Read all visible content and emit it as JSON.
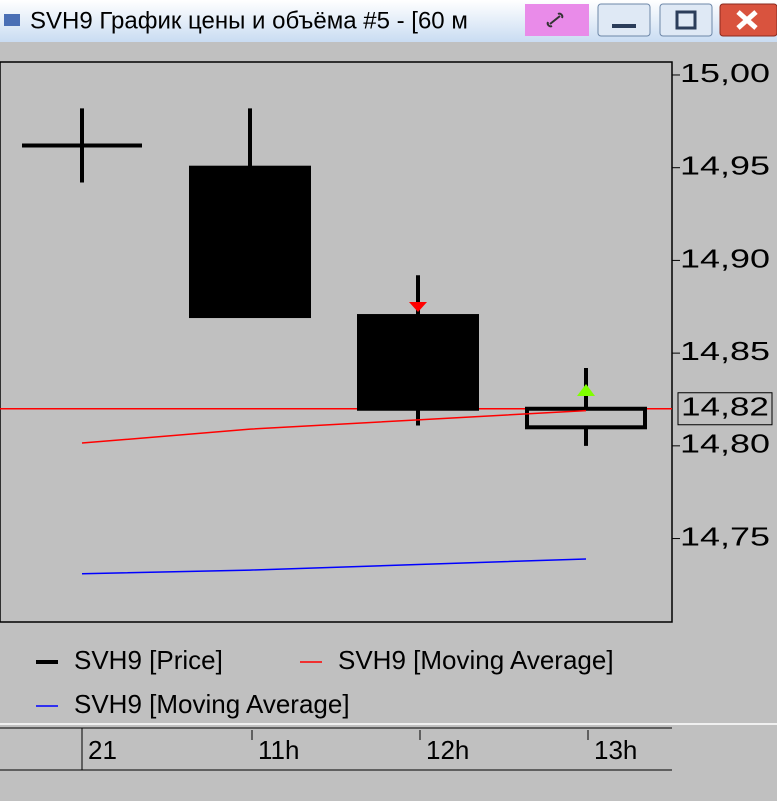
{
  "window": {
    "title": "SVH9 График цены и объёма #5 - [60 м"
  },
  "chart_data": {
    "type": "candlestick",
    "categories": [
      "21",
      "11h",
      "12h",
      "13h"
    ],
    "series": [
      {
        "name": "SVH9 [Price]",
        "color": "#000000",
        "open": [
          14.962,
          14.95,
          14.87,
          14.81
        ],
        "high": [
          14.982,
          14.982,
          14.892,
          14.842
        ],
        "low": [
          14.942,
          14.87,
          14.811,
          14.8
        ],
        "close": [
          14.962,
          14.87,
          14.82,
          14.82
        ]
      },
      {
        "name": "SVH9 [Moving Average]",
        "color": "#ff0000",
        "values": [
          14.8015,
          14.809,
          14.814,
          14.819
        ]
      },
      {
        "name": "SVH9 [Moving Average]",
        "color": "#0000ff",
        "values": [
          14.731,
          14.733,
          14.736,
          14.739
        ]
      }
    ],
    "ylim": [
      14.705,
      15.007
    ],
    "yticks": [
      {
        "value": 14.75,
        "label": "14,75"
      },
      {
        "value": 14.8,
        "label": "14,80"
      },
      {
        "value": 14.85,
        "label": "14,85"
      },
      {
        "value": 14.9,
        "label": "14,90"
      },
      {
        "value": 14.95,
        "label": "14,95"
      },
      {
        "value": 15.0,
        "label": "15,00"
      }
    ],
    "price_line": {
      "value": 14.82,
      "label": "14,82",
      "color": "#ff0000"
    }
  }
}
